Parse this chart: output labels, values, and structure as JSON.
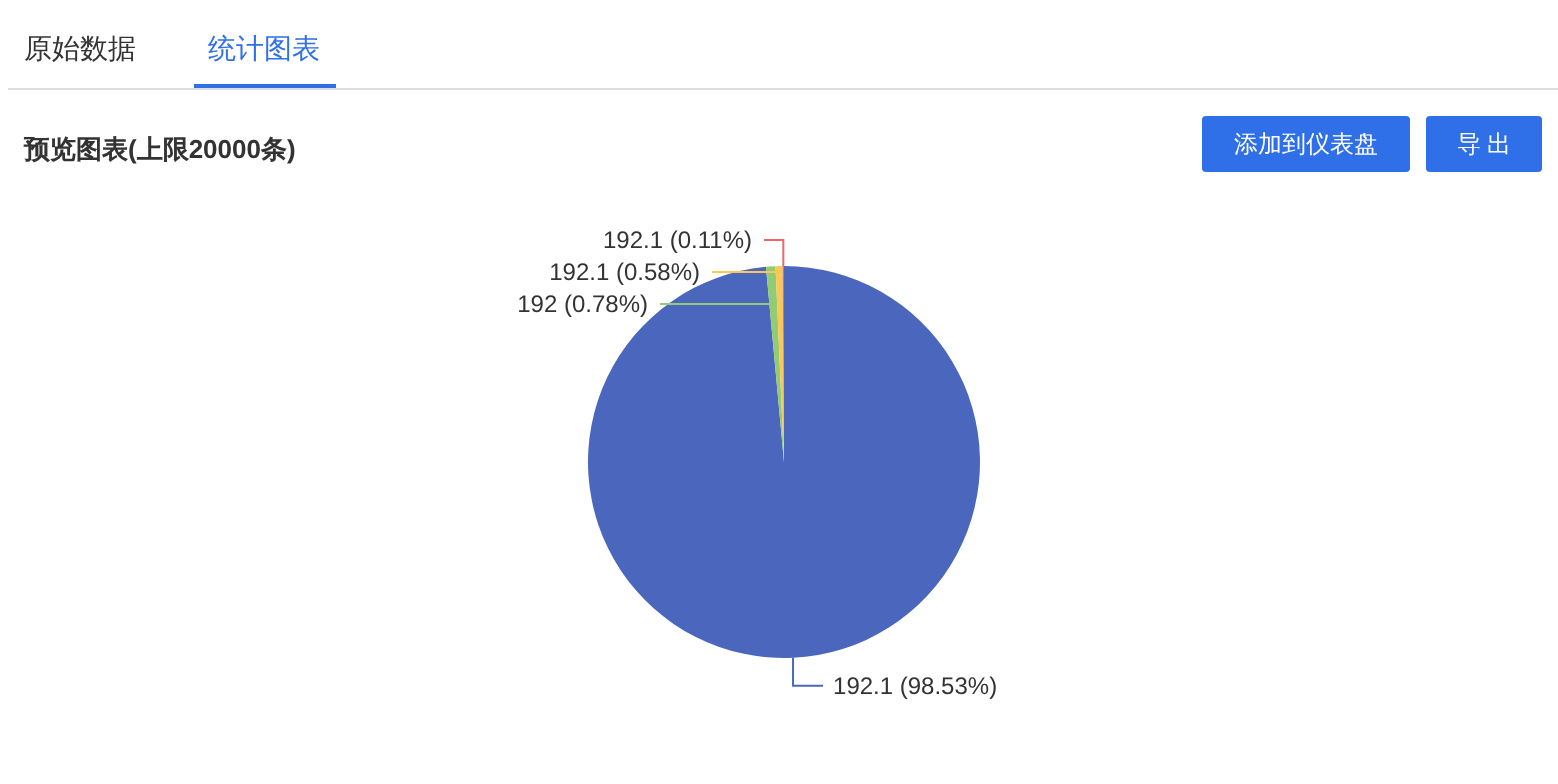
{
  "chart_data": {
    "type": "pie",
    "title": "预览图表(上限20000条)",
    "annotations": [
      "原始数据",
      "统计图表",
      "添加到仪表盘",
      "导 出"
    ],
    "categories": [
      "192.1",
      "192",
      "192.1",
      "192.1"
    ],
    "values": [
      98.53,
      0.78,
      0.58,
      0.11
    ],
    "colors": [
      "#4a67bd",
      "#91cc75",
      "#fac858",
      "#ee6666"
    ],
    "value_labels": [
      "(98.53%)",
      "(0.78%)",
      "(0.58%)",
      "(0.11%)"
    ]
  }
}
